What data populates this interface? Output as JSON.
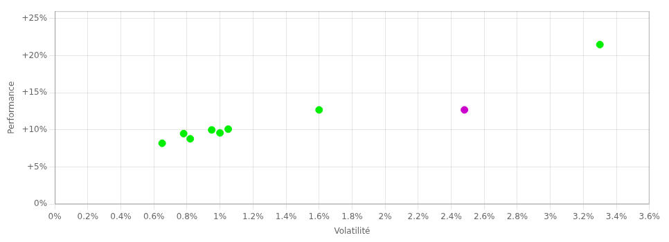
{
  "chart_data": {
    "type": "scatter",
    "xlabel": "Volatilité",
    "ylabel": "Performance",
    "xlim": [
      0.0,
      0.036
    ],
    "ylim": [
      0.0,
      0.26
    ],
    "xticks": [
      {
        "value": 0.0,
        "label": "0%"
      },
      {
        "value": 0.002,
        "label": "0.2%"
      },
      {
        "value": 0.004,
        "label": "0.4%"
      },
      {
        "value": 0.006,
        "label": "0.6%"
      },
      {
        "value": 0.008,
        "label": "0.8%"
      },
      {
        "value": 0.01,
        "label": "1%"
      },
      {
        "value": 0.012,
        "label": "1.2%"
      },
      {
        "value": 0.014,
        "label": "1.4%"
      },
      {
        "value": 0.016,
        "label": "1.6%"
      },
      {
        "value": 0.018,
        "label": "1.8%"
      },
      {
        "value": 0.02,
        "label": "2%"
      },
      {
        "value": 0.022,
        "label": "2.2%"
      },
      {
        "value": 0.024,
        "label": "2.4%"
      },
      {
        "value": 0.026,
        "label": "2.6%"
      },
      {
        "value": 0.028,
        "label": "2.8%"
      },
      {
        "value": 0.03,
        "label": "3%"
      },
      {
        "value": 0.032,
        "label": "3.2%"
      },
      {
        "value": 0.034,
        "label": "3.4%"
      },
      {
        "value": 0.036,
        "label": "3.6%"
      }
    ],
    "yticks": [
      {
        "value": 0.0,
        "label": "0%"
      },
      {
        "value": 0.05,
        "label": "+5%"
      },
      {
        "value": 0.1,
        "label": "+10%"
      },
      {
        "value": 0.15,
        "label": "+15%"
      },
      {
        "value": 0.2,
        "label": "+20%"
      },
      {
        "value": 0.25,
        "label": "+25%"
      }
    ],
    "grid": true,
    "series": [
      {
        "color": "#00ee00",
        "x": [
          0.0065,
          0.0078,
          0.0082,
          0.0095,
          0.01,
          0.0105,
          0.016,
          0.033
        ],
        "values": [
          0.082,
          0.095,
          0.088,
          0.1,
          0.096,
          0.101,
          0.127,
          0.215
        ]
      },
      {
        "color": "#cc00cc",
        "x": [
          0.0248
        ],
        "values": [
          0.127
        ]
      }
    ]
  }
}
